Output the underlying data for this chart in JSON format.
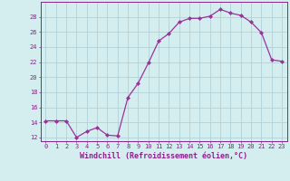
{
  "x": [
    0,
    1,
    2,
    3,
    4,
    5,
    6,
    7,
    8,
    9,
    10,
    11,
    12,
    13,
    14,
    15,
    16,
    17,
    18,
    19,
    20,
    21,
    22,
    23
  ],
  "y": [
    14.2,
    14.2,
    14.2,
    12.0,
    12.8,
    13.3,
    12.3,
    12.2,
    17.3,
    19.2,
    21.9,
    24.8,
    25.8,
    27.3,
    27.8,
    27.8,
    28.1,
    29.0,
    28.5,
    28.2,
    27.3,
    25.9,
    22.3,
    22.1
  ],
  "line_color": "#993399",
  "marker": "D",
  "markersize": 2.0,
  "linewidth": 0.9,
  "xlabel": "Windchill (Refroidissement éolien,°C)",
  "xlabel_fontsize": 6.0,
  "ylabel_ticks": [
    12,
    14,
    16,
    18,
    20,
    22,
    24,
    26,
    28
  ],
  "xtick_labels": [
    "0",
    "1",
    "2",
    "3",
    "4",
    "5",
    "6",
    "7",
    "8",
    "9",
    "10",
    "11",
    "12",
    "13",
    "14",
    "15",
    "16",
    "17",
    "18",
    "19",
    "20",
    "21",
    "22",
    "23"
  ],
  "xlim": [
    -0.5,
    23.5
  ],
  "ylim": [
    11.5,
    30.0
  ],
  "bg_color": "#d4eef0",
  "grid_color": "#aaccd4",
  "tick_color": "#882288",
  "tick_fontsize": 5.0
}
